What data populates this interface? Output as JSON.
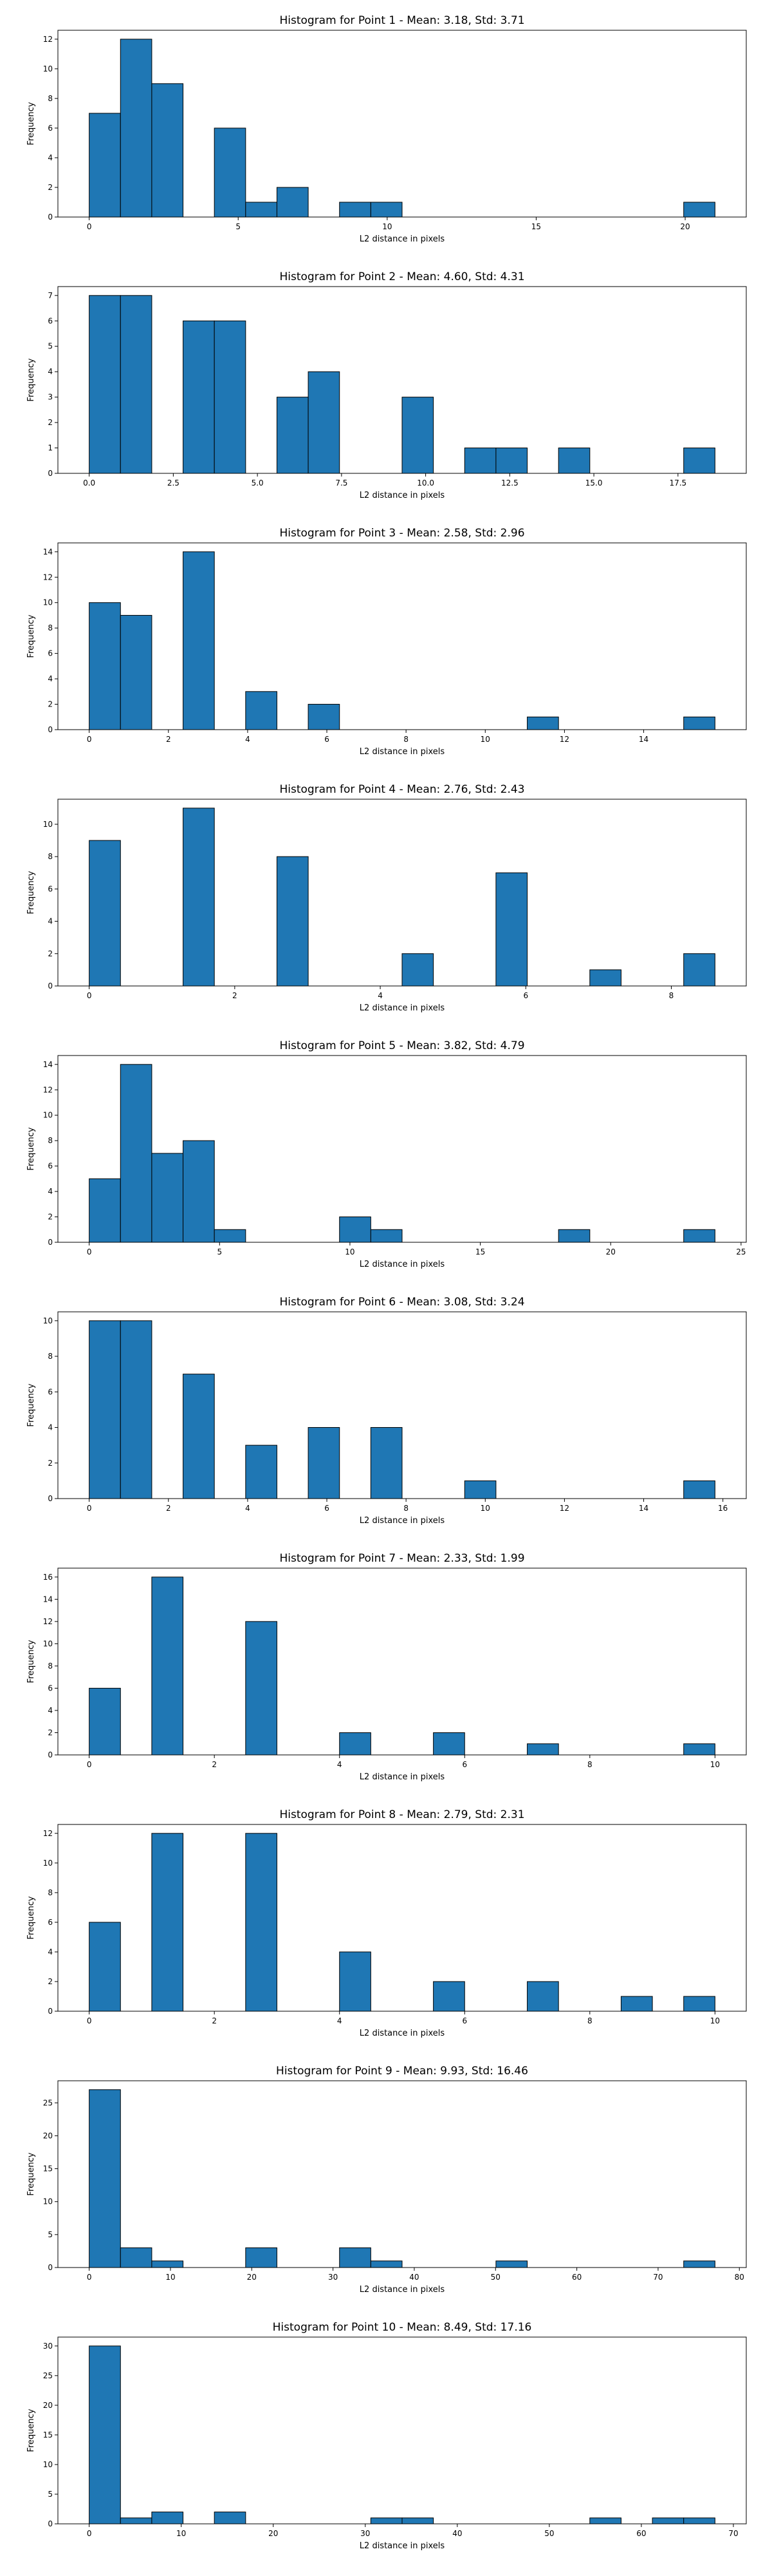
{
  "chart_data": [
    {
      "type": "bar",
      "title": "Histogram for Point 1 - Mean: 3.18, Std: 3.71",
      "xlabel": "L2 distance in pixels",
      "ylabel": "Frequency",
      "xlim": [
        -1.05,
        22.05
      ],
      "ylim": [
        0,
        12.6
      ],
      "xticks": [
        0,
        5,
        10,
        15,
        20
      ],
      "xtick_labels": [
        "0",
        "5",
        "10",
        "15",
        "20"
      ],
      "yticks": [
        0,
        2,
        4,
        6,
        8,
        10,
        12
      ],
      "ytick_labels": [
        "0",
        "2",
        "4",
        "6",
        "8",
        "10",
        "12"
      ],
      "bins": [
        {
          "x0": 0.0,
          "x1": 1.05,
          "count": 7
        },
        {
          "x0": 1.05,
          "x1": 2.1,
          "count": 12
        },
        {
          "x0": 2.1,
          "x1": 3.15,
          "count": 9
        },
        {
          "x0": 4.2,
          "x1": 5.25,
          "count": 6
        },
        {
          "x0": 5.25,
          "x1": 6.3,
          "count": 1
        },
        {
          "x0": 6.3,
          "x1": 7.35,
          "count": 2
        },
        {
          "x0": 8.4,
          "x1": 9.45,
          "count": 1
        },
        {
          "x0": 9.45,
          "x1": 10.5,
          "count": 1
        },
        {
          "x0": 19.95,
          "x1": 21.0,
          "count": 1
        }
      ]
    },
    {
      "type": "bar",
      "title": "Histogram for Point 2 - Mean: 4.60, Std: 4.31",
      "xlabel": "L2 distance in pixels",
      "ylabel": "Frequency",
      "xlim": [
        -0.93,
        19.53
      ],
      "ylim": [
        0,
        7.35
      ],
      "xticks": [
        0,
        2.5,
        5,
        7.5,
        10,
        12.5,
        15,
        17.5
      ],
      "xtick_labels": [
        "0.0",
        "2.5",
        "5.0",
        "7.5",
        "10.0",
        "12.5",
        "15.0",
        "17.5"
      ],
      "yticks": [
        0,
        1,
        2,
        3,
        4,
        5,
        6,
        7
      ],
      "ytick_labels": [
        "0",
        "1",
        "2",
        "3",
        "4",
        "5",
        "6",
        "7"
      ],
      "bins": [
        {
          "x0": 0.0,
          "x1": 0.93,
          "count": 7
        },
        {
          "x0": 0.93,
          "x1": 1.86,
          "count": 7
        },
        {
          "x0": 2.79,
          "x1": 3.72,
          "count": 6
        },
        {
          "x0": 3.72,
          "x1": 4.65,
          "count": 6
        },
        {
          "x0": 5.58,
          "x1": 6.51,
          "count": 3
        },
        {
          "x0": 6.51,
          "x1": 7.44,
          "count": 4
        },
        {
          "x0": 9.3,
          "x1": 10.23,
          "count": 3
        },
        {
          "x0": 11.16,
          "x1": 12.09,
          "count": 1
        },
        {
          "x0": 12.09,
          "x1": 13.02,
          "count": 1
        },
        {
          "x0": 13.95,
          "x1": 14.88,
          "count": 1
        },
        {
          "x0": 17.67,
          "x1": 18.6,
          "count": 1
        }
      ]
    },
    {
      "type": "bar",
      "title": "Histogram for Point 3 - Mean: 2.58, Std: 2.96",
      "xlabel": "L2 distance in pixels",
      "ylabel": "Frequency",
      "xlim": [
        -0.79,
        16.59
      ],
      "ylim": [
        0,
        14.7
      ],
      "xticks": [
        0,
        2,
        4,
        6,
        8,
        10,
        12,
        14
      ],
      "xtick_labels": [
        "0",
        "2",
        "4",
        "6",
        "8",
        "10",
        "12",
        "14"
      ],
      "yticks": [
        0,
        2,
        4,
        6,
        8,
        10,
        12,
        14
      ],
      "ytick_labels": [
        "0",
        "2",
        "4",
        "6",
        "8",
        "10",
        "12",
        "14"
      ],
      "bins": [
        {
          "x0": 0.0,
          "x1": 0.79,
          "count": 10
        },
        {
          "x0": 0.79,
          "x1": 1.58,
          "count": 9
        },
        {
          "x0": 2.37,
          "x1": 3.16,
          "count": 14
        },
        {
          "x0": 3.95,
          "x1": 4.74,
          "count": 3
        },
        {
          "x0": 5.53,
          "x1": 6.32,
          "count": 2
        },
        {
          "x0": 11.06,
          "x1": 11.85,
          "count": 1
        },
        {
          "x0": 15.01,
          "x1": 15.8,
          "count": 1
        }
      ]
    },
    {
      "type": "bar",
      "title": "Histogram for Point 4 - Mean: 2.76, Std: 2.43",
      "xlabel": "L2 distance in pixels",
      "ylabel": "Frequency",
      "xlim": [
        -0.43,
        9.03
      ],
      "ylim": [
        0,
        11.55
      ],
      "xticks": [
        0,
        2,
        4,
        6,
        8
      ],
      "xtick_labels": [
        "0",
        "2",
        "4",
        "6",
        "8"
      ],
      "yticks": [
        0,
        2,
        4,
        6,
        8,
        10
      ],
      "ytick_labels": [
        "0",
        "2",
        "4",
        "6",
        "8",
        "10"
      ],
      "bins": [
        {
          "x0": 0.0,
          "x1": 0.43,
          "count": 9
        },
        {
          "x0": 1.29,
          "x1": 1.72,
          "count": 11
        },
        {
          "x0": 2.58,
          "x1": 3.01,
          "count": 8
        },
        {
          "x0": 4.3,
          "x1": 4.73,
          "count": 2
        },
        {
          "x0": 5.59,
          "x1": 6.02,
          "count": 7
        },
        {
          "x0": 6.88,
          "x1": 7.31,
          "count": 1
        },
        {
          "x0": 8.17,
          "x1": 8.6,
          "count": 2
        }
      ]
    },
    {
      "type": "bar",
      "title": "Histogram for Point 5 - Mean: 3.82, Std: 4.79",
      "xlabel": "L2 distance in pixels",
      "ylabel": "Frequency",
      "xlim": [
        -1.2,
        25.2
      ],
      "ylim": [
        0,
        14.7
      ],
      "xticks": [
        0,
        5,
        10,
        15,
        20,
        25
      ],
      "xtick_labels": [
        "0",
        "5",
        "10",
        "15",
        "20",
        "25"
      ],
      "yticks": [
        0,
        2,
        4,
        6,
        8,
        10,
        12,
        14
      ],
      "ytick_labels": [
        "0",
        "2",
        "4",
        "6",
        "8",
        "10",
        "12",
        "14"
      ],
      "bins": [
        {
          "x0": 0.0,
          "x1": 1.2,
          "count": 5
        },
        {
          "x0": 1.2,
          "x1": 2.4,
          "count": 14
        },
        {
          "x0": 2.4,
          "x1": 3.6,
          "count": 7
        },
        {
          "x0": 3.6,
          "x1": 4.8,
          "count": 8
        },
        {
          "x0": 4.8,
          "x1": 6.0,
          "count": 1
        },
        {
          "x0": 9.6,
          "x1": 10.8,
          "count": 2
        },
        {
          "x0": 10.8,
          "x1": 12.0,
          "count": 1
        },
        {
          "x0": 18.0,
          "x1": 19.2,
          "count": 1
        },
        {
          "x0": 22.8,
          "x1": 24.0,
          "count": 1
        }
      ]
    },
    {
      "type": "bar",
      "title": "Histogram for Point 6 - Mean: 3.08, Std: 3.24",
      "xlabel": "L2 distance in pixels",
      "ylabel": "Frequency",
      "xlim": [
        -0.79,
        16.59
      ],
      "ylim": [
        0,
        10.5
      ],
      "xticks": [
        0,
        2,
        4,
        6,
        8,
        10,
        12,
        14,
        16
      ],
      "xtick_labels": [
        "0",
        "2",
        "4",
        "6",
        "8",
        "10",
        "12",
        "14",
        "16"
      ],
      "yticks": [
        0,
        2,
        4,
        6,
        8,
        10
      ],
      "ytick_labels": [
        "0",
        "2",
        "4",
        "6",
        "8",
        "10"
      ],
      "bins": [
        {
          "x0": 0.0,
          "x1": 0.79,
          "count": 10
        },
        {
          "x0": 0.79,
          "x1": 1.58,
          "count": 10
        },
        {
          "x0": 2.37,
          "x1": 3.16,
          "count": 7
        },
        {
          "x0": 3.95,
          "x1": 4.74,
          "count": 3
        },
        {
          "x0": 5.53,
          "x1": 6.32,
          "count": 4
        },
        {
          "x0": 7.11,
          "x1": 7.9,
          "count": 4
        },
        {
          "x0": 9.48,
          "x1": 10.27,
          "count": 1
        },
        {
          "x0": 15.01,
          "x1": 15.8,
          "count": 1
        }
      ]
    },
    {
      "type": "bar",
      "title": "Histogram for Point 7 - Mean: 2.33, Std: 1.99",
      "xlabel": "L2 distance in pixels",
      "ylabel": "Frequency",
      "xlim": [
        -0.5,
        10.5
      ],
      "ylim": [
        0,
        16.8
      ],
      "xticks": [
        0,
        2,
        4,
        6,
        8,
        10
      ],
      "xtick_labels": [
        "0",
        "2",
        "4",
        "6",
        "8",
        "10"
      ],
      "yticks": [
        0,
        2,
        4,
        6,
        8,
        10,
        12,
        14,
        16
      ],
      "ytick_labels": [
        "0",
        "2",
        "4",
        "6",
        "8",
        "10",
        "12",
        "14",
        "16"
      ],
      "bins": [
        {
          "x0": 0.0,
          "x1": 0.5,
          "count": 6
        },
        {
          "x0": 1.0,
          "x1": 1.5,
          "count": 16
        },
        {
          "x0": 2.5,
          "x1": 3.0,
          "count": 12
        },
        {
          "x0": 4.0,
          "x1": 4.5,
          "count": 2
        },
        {
          "x0": 5.5,
          "x1": 6.0,
          "count": 2
        },
        {
          "x0": 7.0,
          "x1": 7.5,
          "count": 1
        },
        {
          "x0": 9.5,
          "x1": 10.0,
          "count": 1
        }
      ]
    },
    {
      "type": "bar",
      "title": "Histogram for Point 8 - Mean: 2.79, Std: 2.31",
      "xlabel": "L2 distance in pixels",
      "ylabel": "Frequency",
      "xlim": [
        -0.5,
        10.5
      ],
      "ylim": [
        0,
        12.6
      ],
      "xticks": [
        0,
        2,
        4,
        6,
        8,
        10
      ],
      "xtick_labels": [
        "0",
        "2",
        "4",
        "6",
        "8",
        "10"
      ],
      "yticks": [
        0,
        2,
        4,
        6,
        8,
        10,
        12
      ],
      "ytick_labels": [
        "0",
        "2",
        "4",
        "6",
        "8",
        "10",
        "12"
      ],
      "bins": [
        {
          "x0": 0.0,
          "x1": 0.5,
          "count": 6
        },
        {
          "x0": 1.0,
          "x1": 1.5,
          "count": 12
        },
        {
          "x0": 2.5,
          "x1": 3.0,
          "count": 12
        },
        {
          "x0": 4.0,
          "x1": 4.5,
          "count": 4
        },
        {
          "x0": 5.5,
          "x1": 6.0,
          "count": 2
        },
        {
          "x0": 7.0,
          "x1": 7.5,
          "count": 2
        },
        {
          "x0": 8.5,
          "x1": 9.0,
          "count": 1
        },
        {
          "x0": 9.5,
          "x1": 10.0,
          "count": 1
        }
      ]
    },
    {
      "type": "bar",
      "title": "Histogram for Point 9 - Mean: 9.93, Std: 16.46",
      "xlabel": "L2 distance in pixels",
      "ylabel": "Frequency",
      "xlim": [
        -3.85,
        80.85
      ],
      "ylim": [
        0,
        28.35
      ],
      "xticks": [
        0,
        10,
        20,
        30,
        40,
        50,
        60,
        70,
        80
      ],
      "xtick_labels": [
        "0",
        "10",
        "20",
        "30",
        "40",
        "50",
        "60",
        "70",
        "80"
      ],
      "yticks": [
        0,
        5,
        10,
        15,
        20,
        25
      ],
      "ytick_labels": [
        "0",
        "5",
        "10",
        "15",
        "20",
        "25"
      ],
      "bins": [
        {
          "x0": 0.0,
          "x1": 3.85,
          "count": 27
        },
        {
          "x0": 3.85,
          "x1": 7.7,
          "count": 3
        },
        {
          "x0": 7.7,
          "x1": 11.55,
          "count": 1
        },
        {
          "x0": 19.25,
          "x1": 23.1,
          "count": 3
        },
        {
          "x0": 30.8,
          "x1": 34.65,
          "count": 3
        },
        {
          "x0": 34.65,
          "x1": 38.5,
          "count": 1
        },
        {
          "x0": 50.05,
          "x1": 53.9,
          "count": 1
        },
        {
          "x0": 73.15,
          "x1": 77.0,
          "count": 1
        }
      ]
    },
    {
      "type": "bar",
      "title": "Histogram for Point 10 - Mean: 8.49, Std: 17.16",
      "xlabel": "L2 distance in pixels",
      "ylabel": "Frequency",
      "xlim": [
        -3.4,
        71.4
      ],
      "ylim": [
        0,
        31.5
      ],
      "xticks": [
        0,
        10,
        20,
        30,
        40,
        50,
        60,
        70
      ],
      "xtick_labels": [
        "0",
        "10",
        "20",
        "30",
        "40",
        "50",
        "60",
        "70"
      ],
      "yticks": [
        0,
        5,
        10,
        15,
        20,
        25,
        30
      ],
      "ytick_labels": [
        "0",
        "5",
        "10",
        "15",
        "20",
        "25",
        "30"
      ],
      "bins": [
        {
          "x0": 0.0,
          "x1": 3.4,
          "count": 30
        },
        {
          "x0": 3.4,
          "x1": 6.8,
          "count": 1
        },
        {
          "x0": 6.8,
          "x1": 10.2,
          "count": 2
        },
        {
          "x0": 13.6,
          "x1": 17.0,
          "count": 2
        },
        {
          "x0": 30.6,
          "x1": 34.0,
          "count": 1
        },
        {
          "x0": 34.0,
          "x1": 37.4,
          "count": 1
        },
        {
          "x0": 54.4,
          "x1": 57.8,
          "count": 1
        },
        {
          "x0": 61.2,
          "x1": 64.6,
          "count": 1
        },
        {
          "x0": 64.6,
          "x1": 68.0,
          "count": 1
        }
      ]
    }
  ]
}
